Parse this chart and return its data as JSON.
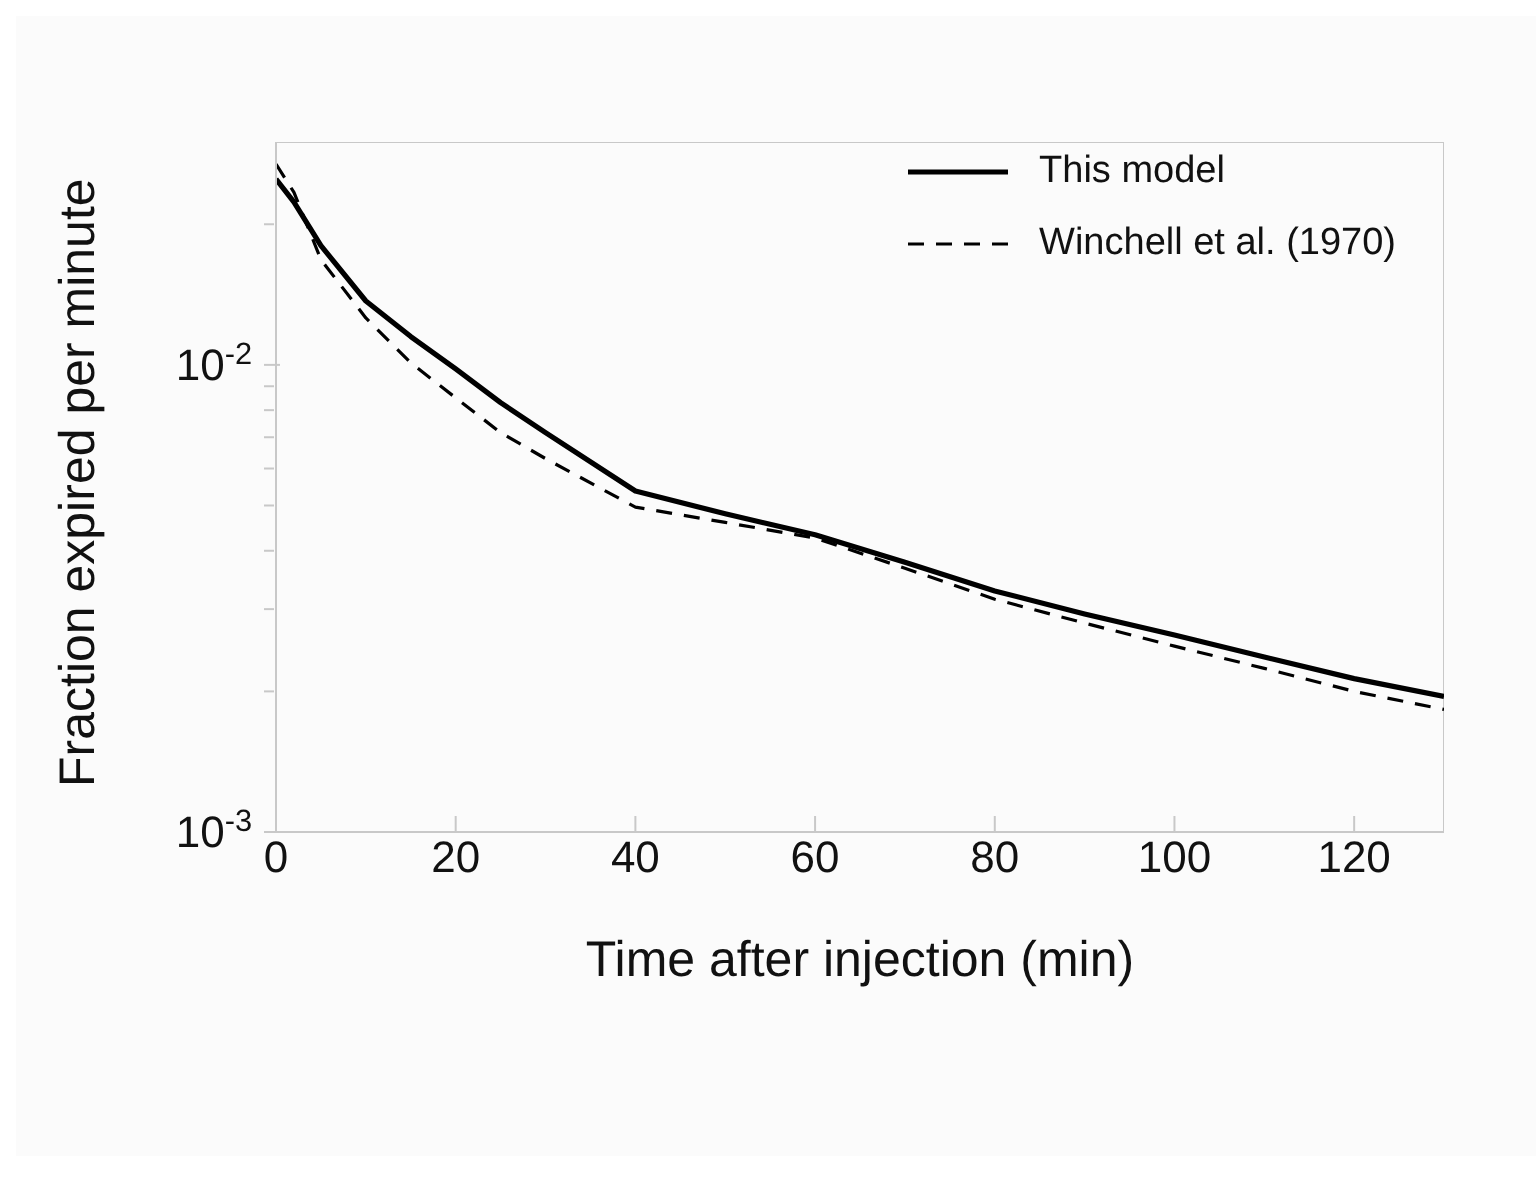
{
  "chart_data": {
    "type": "line",
    "xlabel": "Time after injection (min)",
    "ylabel": "Fraction expired per minute",
    "log": "y",
    "grid": false,
    "legend": "top right",
    "marker": "none",
    "xlim": [
      0,
      130
    ],
    "xticks": [
      0,
      20,
      40,
      60,
      80,
      100,
      120
    ],
    "ylim": [
      0.001,
      0.03
    ],
    "yticks": [
      {
        "value": 0.001,
        "label": "10$^{-3}$"
      },
      {
        "value": 0.002,
        "label": null
      },
      {
        "value": 0.003,
        "label": null
      },
      {
        "value": 0.004,
        "label": null
      },
      {
        "value": 0.005,
        "label": null
      },
      {
        "value": 0.006,
        "label": null
      },
      {
        "value": 0.007,
        "label": null
      },
      {
        "value": 0.008,
        "label": null
      },
      {
        "value": 0.009,
        "label": null
      },
      {
        "value": 0.01,
        "label": "10$^{-2}$"
      },
      {
        "value": 0.02,
        "label": null
      }
    ],
    "x": [
      0,
      2,
      5,
      10,
      15,
      20,
      25,
      30,
      40,
      50,
      60,
      70,
      80,
      90,
      100,
      110,
      120,
      130
    ],
    "series": [
      {
        "name": "This model",
        "color": "#000000",
        "line_style": "solid",
        "values": [
          0.025,
          0.0223,
          0.018,
          0.0137,
          0.0115,
          0.0098,
          0.0083,
          0.00716,
          0.00537,
          0.0048,
          0.00433,
          0.00378,
          0.00328,
          0.00293,
          0.00264,
          0.00237,
          0.00213,
          0.00195
        ]
      },
      {
        "name": "Winchell et al. (1970)",
        "color": "#000000",
        "line_style": "dashed",
        "values": [
          0.0269,
          0.0234,
          0.0168,
          0.0126,
          0.0101,
          0.0085,
          0.00716,
          0.0063,
          0.00496,
          0.0046,
          0.00426,
          0.00367,
          0.00315,
          0.0028,
          0.0025,
          0.00224,
          0.002,
          0.00183
        ]
      }
    ]
  }
}
